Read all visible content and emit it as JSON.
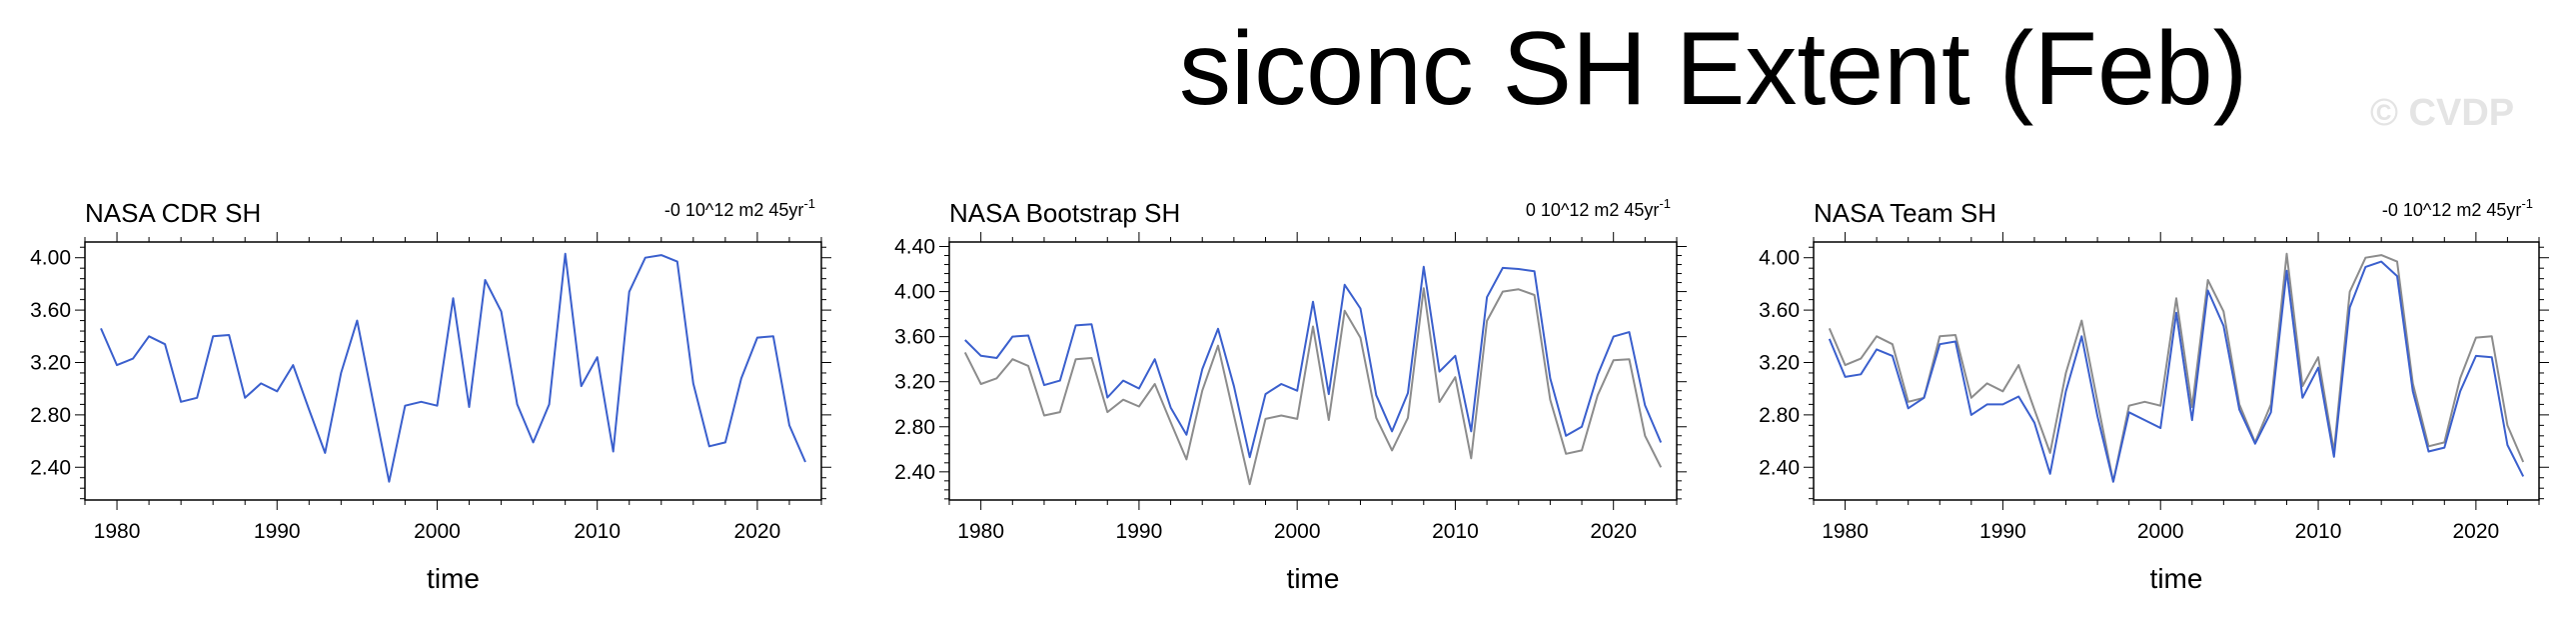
{
  "title": "siconc SH Extent (Feb)",
  "watermark": "© CVDP",
  "colors": {
    "primary": "#3a5fcd",
    "reference": "#8c8c8c",
    "frame": "#000000"
  },
  "chart_data": [
    {
      "type": "line",
      "title": "NASA CDR SH",
      "trend_label": "-0 10^12 m2 45yr",
      "trend_superscript": "-1",
      "xlabel": "time",
      "ylabel": "",
      "xlim": [
        1978,
        2024
      ],
      "ylim": [
        2.15,
        4.12
      ],
      "xticks": [
        1980,
        1990,
        2000,
        2010,
        2020
      ],
      "yticks": [
        "2.40",
        "2.80",
        "3.20",
        "3.60",
        "4.00"
      ],
      "x": [
        1979,
        1980,
        1981,
        1982,
        1983,
        1984,
        1985,
        1986,
        1987,
        1988,
        1989,
        1990,
        1991,
        1992,
        1993,
        1994,
        1995,
        1996,
        1997,
        1998,
        1999,
        2000,
        2001,
        2002,
        2003,
        2004,
        2005,
        2006,
        2007,
        2008,
        2009,
        2010,
        2011,
        2012,
        2013,
        2014,
        2015,
        2016,
        2017,
        2018,
        2019,
        2020,
        2021,
        2022,
        2023
      ],
      "series": [
        {
          "role": "primary",
          "values": [
            3.46,
            3.18,
            3.23,
            3.4,
            3.34,
            2.9,
            2.93,
            3.4,
            3.41,
            2.93,
            3.04,
            2.98,
            3.18,
            2.84,
            2.51,
            3.12,
            3.52,
            2.9,
            2.29,
            2.87,
            2.9,
            2.87,
            3.69,
            2.86,
            3.83,
            3.59,
            2.88,
            2.59,
            2.88,
            4.03,
            3.02,
            3.24,
            2.52,
            3.74,
            4.0,
            4.02,
            3.97,
            3.04,
            2.56,
            2.59,
            3.08,
            3.39,
            3.4,
            2.72,
            2.44
          ]
        }
      ]
    },
    {
      "type": "line",
      "title": "NASA Bootstrap SH",
      "trend_label": "0 10^12 m2 45yr",
      "trend_superscript": "-1",
      "xlabel": "time",
      "ylabel": "",
      "xlim": [
        1978,
        2024
      ],
      "ylim": [
        2.15,
        4.44
      ],
      "xticks": [
        1980,
        1990,
        2000,
        2010,
        2020
      ],
      "yticks": [
        "2.40",
        "2.80",
        "3.20",
        "3.60",
        "4.00",
        "4.40"
      ],
      "x": [
        1979,
        1980,
        1981,
        1982,
        1983,
        1984,
        1985,
        1986,
        1987,
        1988,
        1989,
        1990,
        1991,
        1992,
        1993,
        1994,
        1995,
        1996,
        1997,
        1998,
        1999,
        2000,
        2001,
        2002,
        2003,
        2004,
        2005,
        2006,
        2007,
        2008,
        2009,
        2010,
        2011,
        2012,
        2013,
        2014,
        2015,
        2016,
        2017,
        2018,
        2019,
        2020,
        2021,
        2022,
        2023
      ],
      "series": [
        {
          "role": "reference",
          "values": [
            3.46,
            3.18,
            3.23,
            3.4,
            3.34,
            2.9,
            2.93,
            3.4,
            3.41,
            2.93,
            3.04,
            2.98,
            3.18,
            2.84,
            2.51,
            3.12,
            3.52,
            2.9,
            2.29,
            2.87,
            2.9,
            2.87,
            3.69,
            2.86,
            3.83,
            3.59,
            2.88,
            2.59,
            2.88,
            4.03,
            3.02,
            3.24,
            2.52,
            3.74,
            4.0,
            4.02,
            3.97,
            3.04,
            2.56,
            2.59,
            3.08,
            3.39,
            3.4,
            2.72,
            2.44
          ]
        },
        {
          "role": "primary",
          "values": [
            3.57,
            3.43,
            3.41,
            3.6,
            3.61,
            3.17,
            3.21,
            3.7,
            3.71,
            3.06,
            3.21,
            3.14,
            3.4,
            2.97,
            2.73,
            3.31,
            3.67,
            3.16,
            2.53,
            3.09,
            3.18,
            3.12,
            3.91,
            3.09,
            4.06,
            3.85,
            3.08,
            2.76,
            3.1,
            4.22,
            3.29,
            3.43,
            2.76,
            3.95,
            4.21,
            4.2,
            4.18,
            3.23,
            2.72,
            2.8,
            3.26,
            3.6,
            3.64,
            2.99,
            2.66
          ]
        }
      ]
    },
    {
      "type": "line",
      "title": "NASA Team SH",
      "trend_label": "-0 10^12 m2 45yr",
      "trend_superscript": "-1",
      "xlabel": "time",
      "ylabel": "",
      "xlim": [
        1978,
        2024
      ],
      "ylim": [
        2.15,
        4.12
      ],
      "xticks": [
        1980,
        1990,
        2000,
        2010,
        2020
      ],
      "yticks": [
        "2.40",
        "2.80",
        "3.20",
        "3.60",
        "4.00"
      ],
      "x": [
        1979,
        1980,
        1981,
        1982,
        1983,
        1984,
        1985,
        1986,
        1987,
        1988,
        1989,
        1990,
        1991,
        1992,
        1993,
        1994,
        1995,
        1996,
        1997,
        1998,
        1999,
        2000,
        2001,
        2002,
        2003,
        2004,
        2005,
        2006,
        2007,
        2008,
        2009,
        2010,
        2011,
        2012,
        2013,
        2014,
        2015,
        2016,
        2017,
        2018,
        2019,
        2020,
        2021,
        2022,
        2023
      ],
      "series": [
        {
          "role": "reference",
          "values": [
            3.46,
            3.18,
            3.23,
            3.4,
            3.34,
            2.9,
            2.93,
            3.4,
            3.41,
            2.93,
            3.04,
            2.98,
            3.18,
            2.84,
            2.51,
            3.12,
            3.52,
            2.9,
            2.29,
            2.87,
            2.9,
            2.87,
            3.69,
            2.86,
            3.83,
            3.59,
            2.88,
            2.59,
            2.88,
            4.03,
            3.02,
            3.24,
            2.52,
            3.74,
            4.0,
            4.02,
            3.97,
            3.04,
            2.56,
            2.59,
            3.08,
            3.39,
            3.4,
            2.72,
            2.44
          ]
        },
        {
          "role": "primary",
          "values": [
            3.38,
            3.09,
            3.11,
            3.3,
            3.25,
            2.85,
            2.93,
            3.34,
            3.36,
            2.8,
            2.88,
            2.88,
            2.94,
            2.74,
            2.35,
            2.98,
            3.4,
            2.79,
            2.29,
            2.82,
            2.76,
            2.7,
            3.58,
            2.76,
            3.75,
            3.48,
            2.84,
            2.58,
            2.82,
            3.9,
            2.93,
            3.16,
            2.48,
            3.62,
            3.93,
            3.97,
            3.86,
            2.98,
            2.52,
            2.55,
            2.98,
            3.25,
            3.24,
            2.57,
            2.33
          ]
        }
      ]
    }
  ]
}
